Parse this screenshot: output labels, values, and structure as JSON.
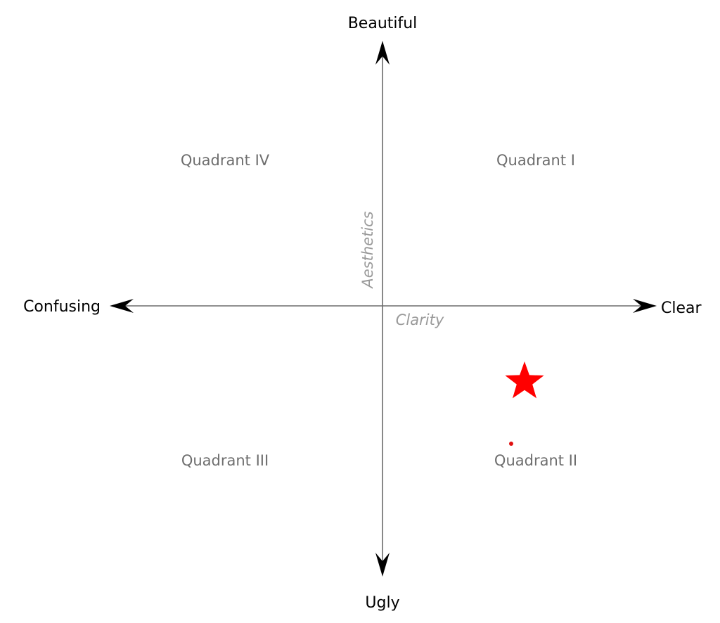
{
  "axes": {
    "horizontal": {
      "name": "Clarity",
      "left_label": "Confusing",
      "right_label": "Clear"
    },
    "vertical": {
      "name": "Aesthetics",
      "top_label": "Beautiful",
      "bottom_label": "Ugly"
    }
  },
  "quadrants": {
    "q1": "Quadrant I",
    "q2": "Quadrant II",
    "q3": "Quadrant III",
    "q4": "Quadrant IV"
  },
  "markers": {
    "star_color": "#ff0000",
    "dot_color": "#e01010",
    "star_icon": "star-icon",
    "dot_icon": "dot-icon"
  }
}
